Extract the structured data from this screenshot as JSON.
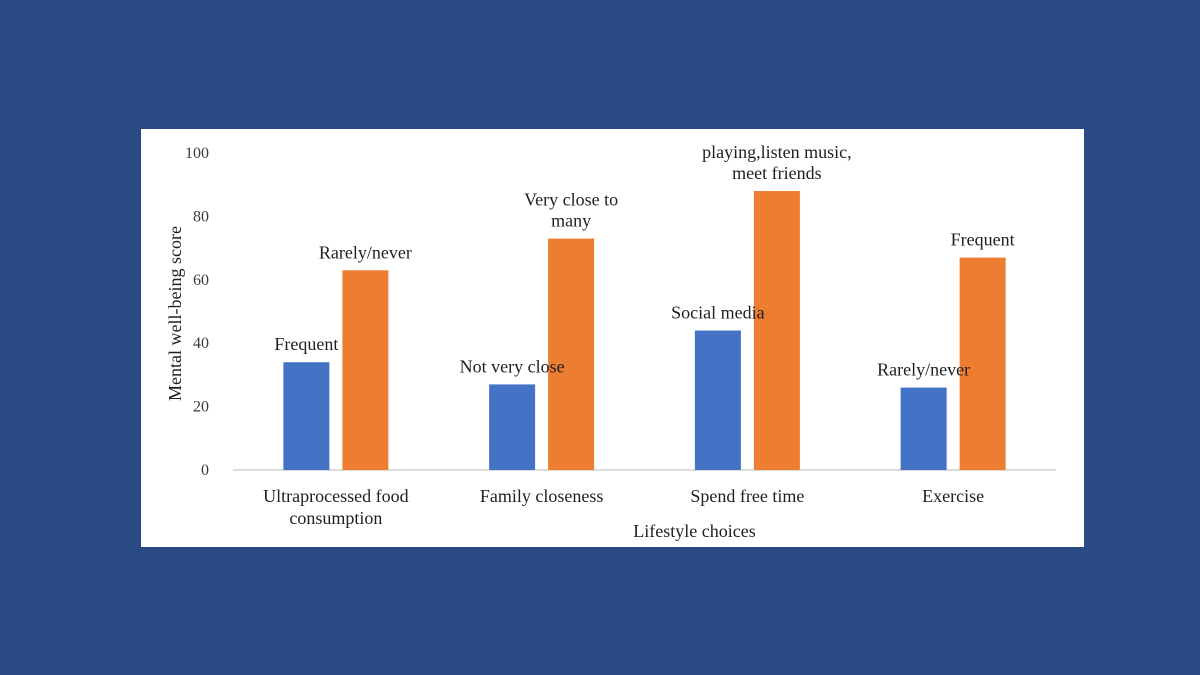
{
  "chart_data": {
    "type": "bar",
    "categories": [
      [
        "Ultraprocessed food",
        "consumption"
      ],
      [
        "Family closeness"
      ],
      [
        "Spend free time"
      ],
      [
        "Exercise"
      ]
    ],
    "series": [
      {
        "color": "#4472c4",
        "values": [
          34,
          27,
          44,
          26
        ]
      },
      {
        "color": "#ed7d31",
        "values": [
          63,
          73,
          88,
          67
        ]
      }
    ],
    "annotations": [
      [
        [
          "Frequent"
        ],
        [
          "Rarely/never"
        ]
      ],
      [
        [
          "Not very close"
        ],
        [
          "Very close to",
          "many"
        ]
      ],
      [
        [
          "Social media"
        ],
        [
          "playing,listen music,",
          "meet friends"
        ]
      ],
      [
        [
          "Rarely/never"
        ],
        [
          "Frequent"
        ]
      ]
    ],
    "xlabel": "Lifestyle choices",
    "ylabel": "Mental well-being score",
    "ylim": [
      0,
      100
    ],
    "yticks": [
      0,
      20,
      40,
      60,
      80,
      100
    ],
    "grid": false,
    "legend": "none"
  }
}
